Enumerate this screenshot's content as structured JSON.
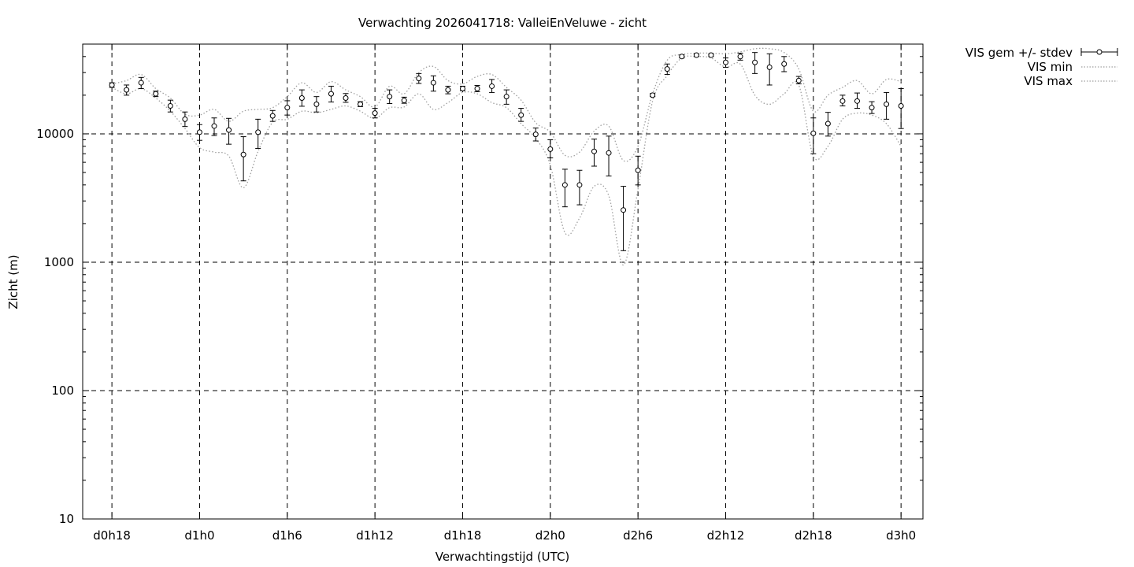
{
  "chart_data": {
    "type": "scatter",
    "title": "Verwachting 2026041718: ValleiEnVeluwe - zicht",
    "xlabel": "Verwachtingstijd (UTC)",
    "ylabel": "Zicht (m)",
    "yscale": "log",
    "ylim": [
      10,
      50000
    ],
    "xlim": [
      -2,
      55.5
    ],
    "grid": true,
    "legend_position": "top-right outside",
    "x_unit": "hours since d0h18",
    "x_ticks": [
      {
        "x": 0,
        "label": "d0h18"
      },
      {
        "x": 6,
        "label": "d1h0"
      },
      {
        "x": 12,
        "label": "d1h6"
      },
      {
        "x": 18,
        "label": "d1h12"
      },
      {
        "x": 24,
        "label": "d1h18"
      },
      {
        "x": 30,
        "label": "d2h0"
      },
      {
        "x": 36,
        "label": "d2h6"
      },
      {
        "x": 42,
        "label": "d2h12"
      },
      {
        "x": 48,
        "label": "d2h18"
      },
      {
        "x": 54,
        "label": "d3h0"
      }
    ],
    "y_ticks": [
      {
        "y": 10,
        "label": "10"
      },
      {
        "y": 100,
        "label": "100"
      },
      {
        "y": 1000,
        "label": "1000"
      },
      {
        "y": 10000,
        "label": "10000"
      }
    ],
    "series": [
      {
        "name": "VIS gem +/- stdev",
        "style": "points-errorbars",
        "x": [
          0,
          1,
          2,
          3,
          4,
          5,
          6,
          7,
          8,
          9,
          10,
          11,
          12,
          13,
          14,
          15,
          16,
          17,
          18,
          19,
          20,
          21,
          22,
          23,
          24,
          25,
          26,
          27,
          28,
          29,
          30,
          31,
          32,
          33,
          34,
          35,
          36,
          37,
          38,
          39,
          40,
          41,
          42,
          43,
          44,
          45,
          46,
          47,
          48,
          49,
          50,
          51,
          52,
          53,
          54
        ],
        "mean": [
          24000,
          22000,
          25000,
          20500,
          16500,
          13000,
          10300,
          11500,
          10700,
          6900,
          10300,
          13800,
          16000,
          19000,
          17000,
          20500,
          19000,
          17000,
          14500,
          19500,
          18200,
          27000,
          25000,
          22000,
          22500,
          22500,
          23500,
          19500,
          14000,
          9900,
          7600,
          4000,
          4000,
          7300,
          7100,
          2550,
          5200,
          20000,
          32000,
          40000,
          41000,
          41000,
          36000,
          40000,
          36000,
          33000,
          35000,
          26000,
          10100,
          12000,
          18000,
          18000,
          16000,
          17000,
          16500
        ],
        "low": [
          23000,
          20000,
          22500,
          19500,
          14800,
          11400,
          8900,
          9700,
          8300,
          4300,
          7700,
          12500,
          14000,
          16400,
          14800,
          17700,
          17600,
          16300,
          13300,
          17200,
          17300,
          24700,
          21500,
          20500,
          21700,
          21300,
          21000,
          17000,
          12500,
          8800,
          6500,
          2700,
          2800,
          5600,
          4700,
          1230,
          4000,
          19500,
          29000,
          39000,
          40000,
          40000,
          33000,
          37500,
          29500,
          24000,
          30500,
          24500,
          7000,
          9600,
          16500,
          15800,
          14400,
          13000,
          11000
        ],
        "high": [
          25000,
          24000,
          27500,
          21500,
          18300,
          14800,
          11800,
          13300,
          13200,
          9500,
          13000,
          15200,
          18100,
          22000,
          19500,
          23500,
          20600,
          17800,
          15800,
          22000,
          19300,
          29500,
          28300,
          23500,
          23500,
          23800,
          26500,
          22000,
          15800,
          11100,
          9000,
          5300,
          5200,
          9100,
          9600,
          3900,
          6700,
          20600,
          35000,
          41200,
          42000,
          42000,
          39000,
          42500,
          43000,
          42000,
          40000,
          28000,
          13300,
          14700,
          20000,
          20800,
          17800,
          21000,
          22500
        ]
      },
      {
        "name": "VIS min",
        "style": "dotted-line",
        "x": [
          0,
          1,
          2,
          3,
          4,
          5,
          6,
          7,
          8,
          9,
          10,
          11,
          12,
          13,
          14,
          15,
          16,
          17,
          18,
          19,
          20,
          21,
          22,
          23,
          24,
          25,
          26,
          27,
          28,
          29,
          30,
          31,
          32,
          33,
          34,
          35,
          36,
          37,
          38,
          39,
          40,
          41,
          42,
          43,
          44,
          45,
          46,
          47,
          48,
          49,
          50,
          51,
          52,
          53,
          54
        ],
        "values": [
          23000,
          20500,
          22500,
          19000,
          15000,
          11000,
          7800,
          7200,
          6700,
          3800,
          7300,
          12300,
          13000,
          15000,
          14600,
          15500,
          16500,
          15000,
          13200,
          16000,
          16200,
          20500,
          15500,
          17500,
          21000,
          20500,
          17500,
          16000,
          12000,
          9200,
          5700,
          1700,
          2200,
          3900,
          3300,
          950,
          3700,
          18000,
          28500,
          39000,
          40000,
          39000,
          33000,
          35000,
          20000,
          17000,
          20500,
          24000,
          6700,
          8000,
          13000,
          14500,
          14000,
          12000,
          8000
        ]
      },
      {
        "name": "VIS max",
        "style": "dotted-line",
        "x": [
          0,
          1,
          2,
          3,
          4,
          5,
          6,
          7,
          8,
          9,
          10,
          11,
          12,
          13,
          14,
          15,
          16,
          17,
          18,
          19,
          20,
          21,
          22,
          23,
          24,
          25,
          26,
          27,
          28,
          29,
          30,
          31,
          32,
          33,
          34,
          35,
          36,
          37,
          38,
          39,
          40,
          41,
          42,
          43,
          44,
          45,
          46,
          47,
          48,
          49,
          50,
          51,
          52,
          53,
          54
        ],
        "values": [
          24500,
          26000,
          29000,
          22500,
          19000,
          14200,
          14000,
          15500,
          12500,
          15000,
          15500,
          16000,
          19500,
          25000,
          21000,
          25500,
          22000,
          19500,
          16200,
          23500,
          20500,
          30000,
          33500,
          26000,
          24500,
          28000,
          29000,
          23000,
          18300,
          12200,
          10300,
          6800,
          7200,
          10500,
          11500,
          6200,
          8000,
          20500,
          37500,
          41500,
          42500,
          42500,
          42000,
          43500,
          46000,
          46000,
          43000,
          32000,
          15000,
          20000,
          23000,
          26000,
          20500,
          26500,
          25500
        ]
      }
    ]
  },
  "legend": [
    {
      "label": "VIS gem +/- stdev",
      "style": "point-errorbar"
    },
    {
      "label": "VIS min",
      "style": "dotted"
    },
    {
      "label": "VIS max",
      "style": "dotted"
    }
  ],
  "colors": {
    "background": "#ffffff",
    "axis": "#000000",
    "grid": "#000000",
    "minmax_line": "#a0a0a0",
    "marker_fill": "#ffffff"
  }
}
